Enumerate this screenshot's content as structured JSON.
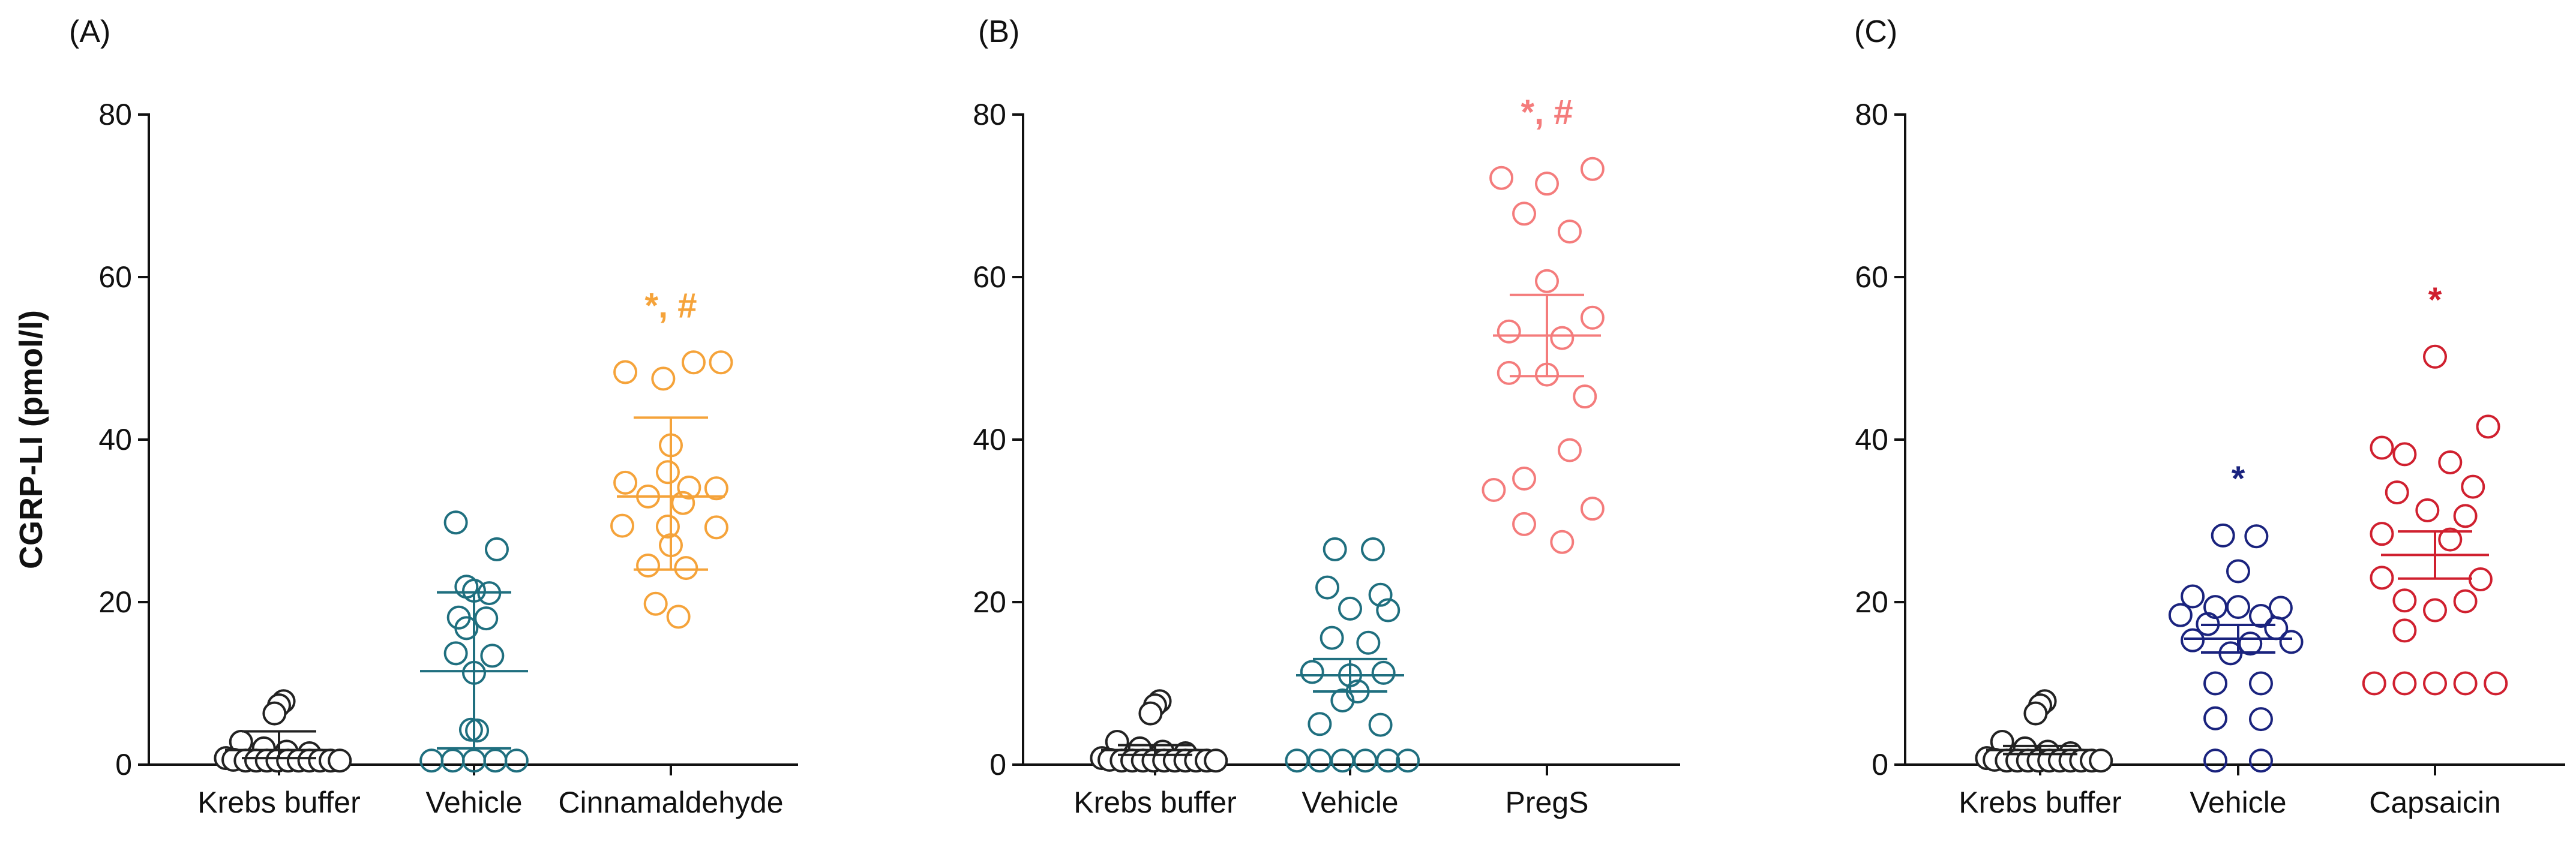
{
  "chart_data": [
    {
      "type": "scatter",
      "panel_label": "(A)",
      "ylabel": "CGRP-LI (pmol/l)",
      "ylim": [
        0,
        80
      ],
      "yticks": [
        "0",
        "20",
        "40",
        "60",
        "80"
      ],
      "categories": [
        "Krebs buffer",
        "Vehicle",
        "Cinnamaldehyde"
      ],
      "series": [
        {
          "name": "Krebs buffer",
          "color": "#222222",
          "filled": true,
          "values": [
            7.8,
            7.3,
            6.3,
            2.8,
            2.0,
            1.6,
            1.4,
            0.8,
            0.6,
            0.5,
            0.5,
            0.5,
            0.5,
            0.5,
            0.5,
            0.5,
            0.5,
            0.5,
            0.5
          ],
          "offsets": [
            0.03,
            0.0,
            -0.03,
            -0.25,
            -0.1,
            0.05,
            0.2,
            -0.35,
            -0.3,
            -0.22,
            -0.15,
            -0.08,
            -0.01,
            0.06,
            0.13,
            0.2,
            0.27,
            0.34,
            0.4
          ],
          "mean": 1.8,
          "err_upper": 4.1,
          "err_lower": 0.8,
          "significance": ""
        },
        {
          "name": "Vehicle",
          "color": "#1f6f7f",
          "filled": false,
          "values": [
            29.8,
            26.5,
            21.9,
            21.4,
            21.1,
            18.1,
            18.0,
            16.8,
            13.7,
            13.4,
            11.3,
            4.3,
            4.2,
            0.5,
            0.5,
            0.5,
            0.5,
            0.5
          ],
          "offsets": [
            -0.12,
            0.15,
            -0.05,
            0.0,
            0.1,
            -0.1,
            0.08,
            -0.05,
            -0.12,
            0.12,
            0.0,
            -0.02,
            0.02,
            -0.28,
            -0.14,
            0.0,
            0.14,
            0.28
          ],
          "mean": 11.5,
          "err_upper": 21.2,
          "err_lower": 2.0,
          "significance": ""
        },
        {
          "name": "Cinnamaldehyde",
          "color": "#f5a33a",
          "filled": false,
          "values": [
            49.5,
            49.5,
            48.3,
            47.5,
            39.3,
            36.0,
            34.7,
            34.1,
            34.0,
            33.0,
            32.2,
            29.4,
            29.3,
            29.2,
            27.0,
            24.5,
            24.2,
            19.8,
            18.2
          ],
          "offsets": [
            0.15,
            0.33,
            -0.3,
            -0.05,
            0.0,
            -0.02,
            -0.3,
            0.12,
            0.3,
            -0.15,
            0.08,
            -0.32,
            -0.02,
            0.3,
            0.0,
            -0.15,
            0.1,
            -0.1,
            0.05
          ],
          "mean": 33.0,
          "err_upper": 42.7,
          "err_lower": 24.0,
          "significance": "*, #"
        }
      ]
    },
    {
      "type": "scatter",
      "panel_label": "(B)",
      "ylabel": "",
      "ylim": [
        0,
        80
      ],
      "yticks": [
        "0",
        "20",
        "40",
        "60",
        "80"
      ],
      "categories": [
        "Krebs buffer",
        "Vehicle",
        "PregS"
      ],
      "series": [
        {
          "name": "Krebs buffer",
          "color": "#222222",
          "filled": true,
          "values": [
            7.8,
            7.3,
            6.3,
            2.8,
            2.0,
            1.6,
            1.4,
            0.8,
            0.6,
            0.5,
            0.5,
            0.5,
            0.5,
            0.5,
            0.5,
            0.5,
            0.5,
            0.5,
            0.5
          ],
          "offsets": [
            0.03,
            0.0,
            -0.03,
            -0.25,
            -0.1,
            0.05,
            0.2,
            -0.35,
            -0.3,
            -0.22,
            -0.15,
            -0.08,
            -0.01,
            0.06,
            0.13,
            0.2,
            0.27,
            0.34,
            0.4
          ],
          "mean": 1.8,
          "err_upper": 2.4,
          "err_lower": 1.2,
          "significance": ""
        },
        {
          "name": "Vehicle",
          "color": "#1f6f7f",
          "filled": false,
          "values": [
            26.5,
            26.5,
            21.8,
            20.9,
            19.2,
            19.0,
            15.6,
            15.0,
            11.4,
            11.3,
            11.0,
            9.0,
            7.9,
            5.0,
            4.9,
            0.5,
            0.5,
            0.5,
            0.5,
            0.5,
            0.5
          ],
          "offsets": [
            -0.1,
            0.15,
            -0.15,
            0.2,
            0.0,
            0.25,
            -0.12,
            0.12,
            -0.25,
            0.22,
            0.0,
            0.05,
            -0.05,
            -0.2,
            0.2,
            -0.35,
            -0.2,
            -0.05,
            0.1,
            0.25,
            0.38
          ],
          "mean": 11.0,
          "err_upper": 13.0,
          "err_lower": 9.0,
          "significance": ""
        },
        {
          "name": "PregS",
          "color": "#f47c7c",
          "filled": false,
          "values": [
            73.3,
            72.2,
            71.5,
            67.8,
            65.6,
            59.5,
            55.0,
            53.3,
            52.5,
            48.2,
            48.0,
            45.3,
            38.7,
            35.2,
            33.8,
            31.5,
            29.6,
            27.4
          ],
          "offsets": [
            0.3,
            -0.3,
            0.0,
            -0.15,
            0.15,
            0.0,
            0.3,
            -0.25,
            0.1,
            -0.25,
            0.0,
            0.25,
            0.15,
            -0.15,
            -0.35,
            0.3,
            -0.15,
            0.1
          ],
          "mean": 52.8,
          "err_upper": 57.8,
          "err_lower": 47.8,
          "significance": "*, #"
        }
      ]
    },
    {
      "type": "scatter",
      "panel_label": "(C)",
      "ylabel": "",
      "ylim": [
        0,
        80
      ],
      "yticks": [
        "0",
        "20",
        "40",
        "60",
        "80"
      ],
      "categories": [
        "Krebs buffer",
        "Vehicle",
        "Capsaicin"
      ],
      "series": [
        {
          "name": "Krebs buffer",
          "color": "#222222",
          "filled": true,
          "values": [
            7.8,
            7.3,
            6.3,
            2.8,
            2.0,
            1.6,
            1.4,
            0.8,
            0.6,
            0.5,
            0.5,
            0.5,
            0.5,
            0.5,
            0.5,
            0.5,
            0.5,
            0.5,
            0.5
          ],
          "offsets": [
            0.03,
            0.0,
            -0.03,
            -0.25,
            -0.1,
            0.05,
            0.2,
            -0.35,
            -0.3,
            -0.22,
            -0.15,
            -0.08,
            -0.01,
            0.06,
            0.13,
            0.2,
            0.27,
            0.34,
            0.4
          ],
          "mean": 1.8,
          "err_upper": 2.3,
          "err_lower": 1.3,
          "significance": ""
        },
        {
          "name": "Vehicle",
          "color": "#1a237e",
          "filled": false,
          "values": [
            28.2,
            28.1,
            23.8,
            20.7,
            19.4,
            19.4,
            19.3,
            18.4,
            18.3,
            17.3,
            16.8,
            15.3,
            15.1,
            14.9,
            13.7,
            10.0,
            10.0,
            5.7,
            5.6,
            0.5,
            0.5
          ],
          "offsets": [
            -0.1,
            0.12,
            0.0,
            -0.3,
            -0.15,
            0.0,
            0.28,
            -0.38,
            0.15,
            -0.2,
            0.25,
            -0.3,
            0.35,
            0.08,
            -0.05,
            -0.15,
            0.15,
            -0.15,
            0.15,
            -0.15,
            0.15
          ],
          "mean": 15.5,
          "err_upper": 17.2,
          "err_lower": 13.8,
          "significance": "*"
        },
        {
          "name": "Capsaicin",
          "color": "#d0202f",
          "filled": false,
          "values": [
            50.2,
            41.6,
            39.0,
            38.2,
            37.2,
            34.2,
            33.5,
            31.3,
            30.6,
            28.4,
            27.7,
            23.0,
            22.8,
            20.2,
            20.1,
            19.0,
            16.5,
            10.0,
            10.0,
            10.0,
            10.0,
            10.0
          ],
          "offsets": [
            0.0,
            0.35,
            -0.35,
            -0.2,
            0.1,
            0.25,
            -0.25,
            -0.05,
            0.2,
            -0.35,
            0.1,
            -0.35,
            0.3,
            -0.2,
            0.2,
            0.0,
            -0.2,
            -0.4,
            -0.2,
            0.0,
            0.2,
            0.4
          ],
          "mean": 25.8,
          "err_upper": 28.7,
          "err_lower": 22.9,
          "significance": "*"
        }
      ]
    }
  ]
}
